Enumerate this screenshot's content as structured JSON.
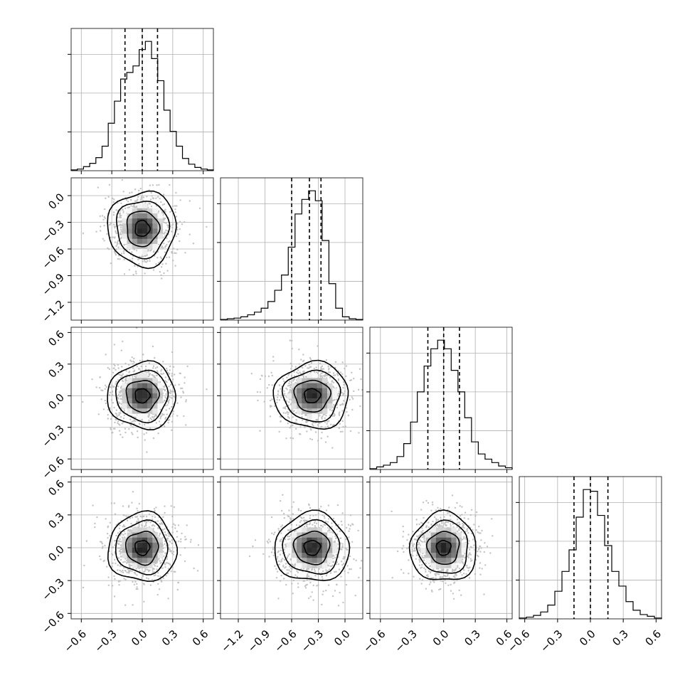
{
  "chart_data": {
    "type": "corner",
    "parameters": [
      {
        "index": 0,
        "range": [
          -0.7,
          0.7
        ],
        "ticks": [
          -0.6,
          -0.3,
          0.0,
          0.3,
          0.6
        ],
        "tick_labels": [
          "−0.6",
          "−0.3",
          "0.0",
          "0.3",
          "0.6"
        ],
        "mean": 0.0,
        "sigma": 0.16,
        "quantiles": [
          -0.17,
          0.0,
          0.15
        ]
      },
      {
        "index": 1,
        "range": [
          -1.4,
          0.2
        ],
        "ticks": [
          -1.2,
          -0.9,
          -0.6,
          -0.3,
          0.0
        ],
        "tick_labels": [
          "−1.2",
          "−0.9",
          "−0.6",
          "−0.3",
          "0.0"
        ],
        "mean": -0.37,
        "sigma": 0.2,
        "quantiles": [
          -0.6,
          -0.4,
          -0.27
        ]
      },
      {
        "index": 2,
        "range": [
          -0.7,
          0.65
        ],
        "ticks": [
          -0.6,
          -0.3,
          0.0,
          0.3,
          0.6
        ],
        "tick_labels": [
          "−0.6",
          "−0.3",
          "0.0",
          "0.3",
          "0.6"
        ],
        "mean": 0.0,
        "sigma": 0.15,
        "quantiles": [
          -0.15,
          0.0,
          0.15
        ]
      },
      {
        "index": 3,
        "range": [
          -0.65,
          0.65
        ],
        "ticks": [
          -0.6,
          -0.3,
          0.0,
          0.3,
          0.6
        ],
        "tick_labels": [
          "−0.6",
          "−0.3",
          "0.0",
          "0.3",
          "0.6"
        ],
        "mean": 0.0,
        "sigma": 0.15,
        "quantiles": [
          -0.15,
          0.0,
          0.16
        ]
      }
    ],
    "histograms": [
      {
        "param": 0,
        "bin_counts": [
          1,
          2,
          5,
          9,
          16,
          30,
          58,
          85,
          112,
          120,
          128,
          148,
          158,
          137,
          110,
          74,
          48,
          30,
          15,
          8,
          4,
          2,
          1
        ]
      },
      {
        "param": 1,
        "bin_counts": [
          1,
          2,
          3,
          5,
          8,
          12,
          18,
          28,
          45,
          68,
          110,
          160,
          182,
          195,
          180,
          120,
          55,
          18,
          5,
          2,
          1
        ]
      },
      {
        "param": 2,
        "bin_counts": [
          1,
          3,
          5,
          8,
          15,
          30,
          55,
          90,
          120,
          140,
          150,
          140,
          115,
          90,
          60,
          32,
          18,
          12,
          8,
          4,
          2
        ]
      },
      {
        "param": 3,
        "bin_counts": [
          1,
          2,
          4,
          8,
          16,
          32,
          55,
          80,
          118,
          150,
          148,
          120,
          85,
          55,
          38,
          20,
          10,
          5,
          3,
          1
        ]
      }
    ],
    "grid": true,
    "quantile_style": "dashed"
  }
}
